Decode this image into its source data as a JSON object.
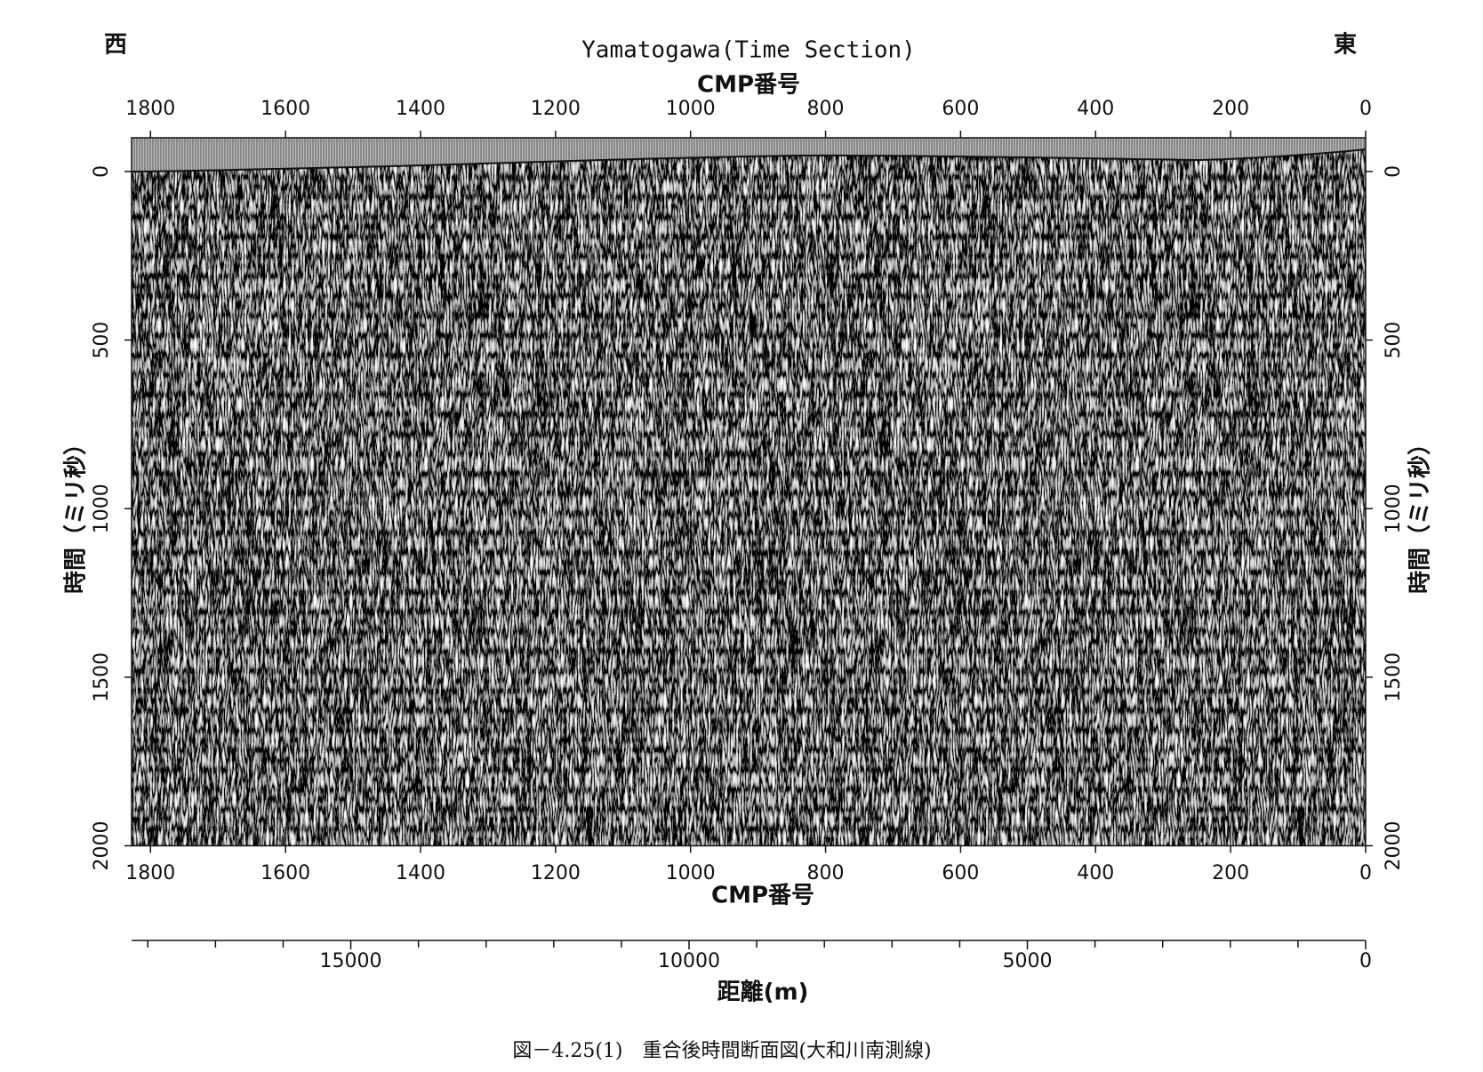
{
  "chart_data": {
    "type": "seismic-section",
    "title": "Yamatogawa(Time Section)",
    "west_label": "西",
    "east_label": "東",
    "x_label": "CMP番号",
    "y_label": "時間（ミリ秒）",
    "xlim": [
      1828,
      0
    ],
    "xticks": [
      1800,
      1600,
      1400,
      1200,
      1000,
      800,
      600,
      400,
      200,
      0
    ],
    "ylim": [
      -100,
      2000
    ],
    "yticks": [
      0,
      500,
      1000,
      1500,
      2000
    ],
    "distance_axis": {
      "label": "距離(m)",
      "lim": [
        18240,
        0
      ],
      "ticks": [
        15000,
        10000,
        5000,
        0
      ],
      "minor_ticks": [
        1000,
        2000,
        3000,
        4000,
        6000,
        7000,
        8000,
        9000,
        11000,
        12000,
        13000,
        14000,
        16000,
        17000,
        18000
      ]
    },
    "caption": "図－4.25(1)　重合後時間断面図(大和川南測線)"
  }
}
